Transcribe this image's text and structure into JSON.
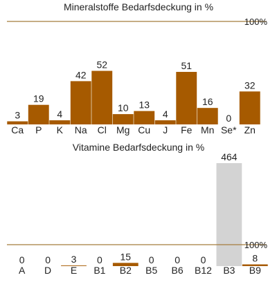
{
  "chart_data": [
    {
      "type": "bar",
      "title": "Mineralstoffe Bedarfsdeckung in %",
      "reference_line": {
        "value": 100,
        "label": "100%",
        "color": "#a57c3c"
      },
      "ylim": [
        0,
        100
      ],
      "bar_color": "#a65a00",
      "categories": [
        "Ca",
        "P",
        "K",
        "Na",
        "Cl",
        "Mg",
        "Cu",
        "J",
        "Fe",
        "Mn",
        "Se*",
        "Zn"
      ],
      "values": [
        3,
        19,
        4,
        42,
        52,
        10,
        13,
        4,
        51,
        16,
        0,
        32
      ],
      "value_labels": [
        "3",
        "19",
        "4",
        "42",
        "52",
        "10",
        "13",
        "4",
        "51",
        "16",
        "0",
        "32"
      ]
    },
    {
      "type": "bar",
      "title": "Vitamine Bedarfsdeckung in %",
      "reference_line": {
        "value": 100,
        "label": "100%",
        "color": "#a57c3c"
      },
      "ylim": [
        0,
        100
      ],
      "bar_color": "#a65a00",
      "over_limit_color": "#d3d3d3",
      "categories": [
        "A",
        "D",
        "E",
        "B1",
        "B2",
        "B5",
        "B6",
        "B12",
        "B3",
        "B9"
      ],
      "values": [
        0,
        0,
        3,
        0,
        15,
        0,
        0,
        0,
        464,
        8
      ],
      "value_labels": [
        "0",
        "0",
        "3",
        "0",
        "15",
        "0",
        "0",
        "0",
        "464",
        "8"
      ]
    }
  ]
}
